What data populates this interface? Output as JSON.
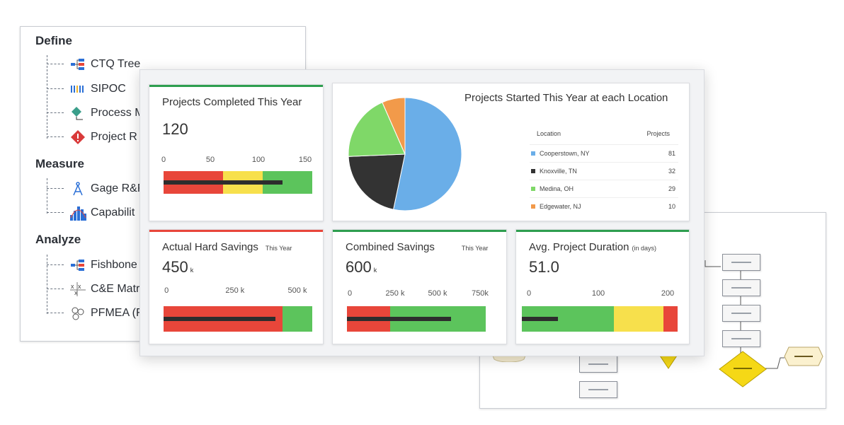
{
  "tree": {
    "sections": [
      {
        "label": "Define",
        "items": [
          {
            "label": "CTQ Tree",
            "icon": "tree-diagram-icon"
          },
          {
            "label": "SIPOC",
            "icon": "sipoc-columns-icon"
          },
          {
            "label": "Process M",
            "icon": "process-map-icon"
          },
          {
            "label": "Project R",
            "icon": "risk-diamond-icon"
          }
        ]
      },
      {
        "label": "Measure",
        "items": [
          {
            "label": "Gage R&R",
            "icon": "compass-icon"
          },
          {
            "label": "Capabilit",
            "icon": "histogram-icon"
          }
        ]
      },
      {
        "label": "Analyze",
        "items": [
          {
            "label": "Fishbone",
            "icon": "fishbone-icon"
          },
          {
            "label": "C&E Matr",
            "icon": "matrix-icon"
          },
          {
            "label": "PFMEA (F",
            "icon": "pfmea-circles-icon"
          }
        ]
      }
    ]
  },
  "dashboard": {
    "projects_completed": {
      "title": "Projects Completed This Year",
      "value": "120",
      "ticks": [
        "0",
        "50",
        "100",
        "150"
      ],
      "scale_max": 150,
      "bands": [
        {
          "to": 60,
          "color": "#e8463a"
        },
        {
          "to": 100,
          "color": "#f7e04c"
        },
        {
          "to": 150,
          "color": "#5cc45c"
        }
      ],
      "measure": 120,
      "accent": "#2e9e4f"
    },
    "projects_started": {
      "title": "Projects Started This Year at each Location",
      "col_location": "Location",
      "col_projects": "Projects",
      "rows": [
        {
          "name": "Cooperstown, NY",
          "value": "81",
          "color": "#6aaee8"
        },
        {
          "name": "Knoxville, TN",
          "value": "32",
          "color": "#333333"
        },
        {
          "name": "Medina, OH",
          "value": "29",
          "color": "#7fd868"
        },
        {
          "name": "Edgewater, NJ",
          "value": "10",
          "color": "#f29a4a"
        }
      ]
    },
    "hard_savings": {
      "title": "Actual Hard Savings",
      "subtitle": "This Year",
      "value": "450",
      "unit": "k",
      "ticks": [
        "0",
        "250 k",
        "500 k"
      ],
      "scale_max": 600,
      "bands": [
        {
          "to": 480,
          "color": "#e8463a"
        },
        {
          "to": 600,
          "color": "#5cc45c"
        }
      ],
      "measure": 450,
      "accent": "#e8463a"
    },
    "combined_savings": {
      "title": "Combined Savings",
      "subtitle": "This Year",
      "value": "600",
      "unit": "k",
      "ticks": [
        "0",
        "250 k",
        "500 k",
        "750k"
      ],
      "scale_max": 800,
      "bands": [
        {
          "to": 250,
          "color": "#e8463a"
        },
        {
          "to": 800,
          "color": "#5cc45c"
        }
      ],
      "measure": 600,
      "accent": "#2e9e4f"
    },
    "avg_duration": {
      "title": "Avg. Project Duration",
      "subtitle": "(in days)",
      "value": "51.0",
      "ticks": [
        "0",
        "100",
        "200"
      ],
      "scale_max": 220,
      "bands": [
        {
          "to": 130,
          "color": "#5cc45c"
        },
        {
          "to": 200,
          "color": "#f7e04c"
        },
        {
          "to": 220,
          "color": "#e8463a"
        }
      ],
      "measure": 51,
      "accent": "#2e9e4f"
    }
  }
}
